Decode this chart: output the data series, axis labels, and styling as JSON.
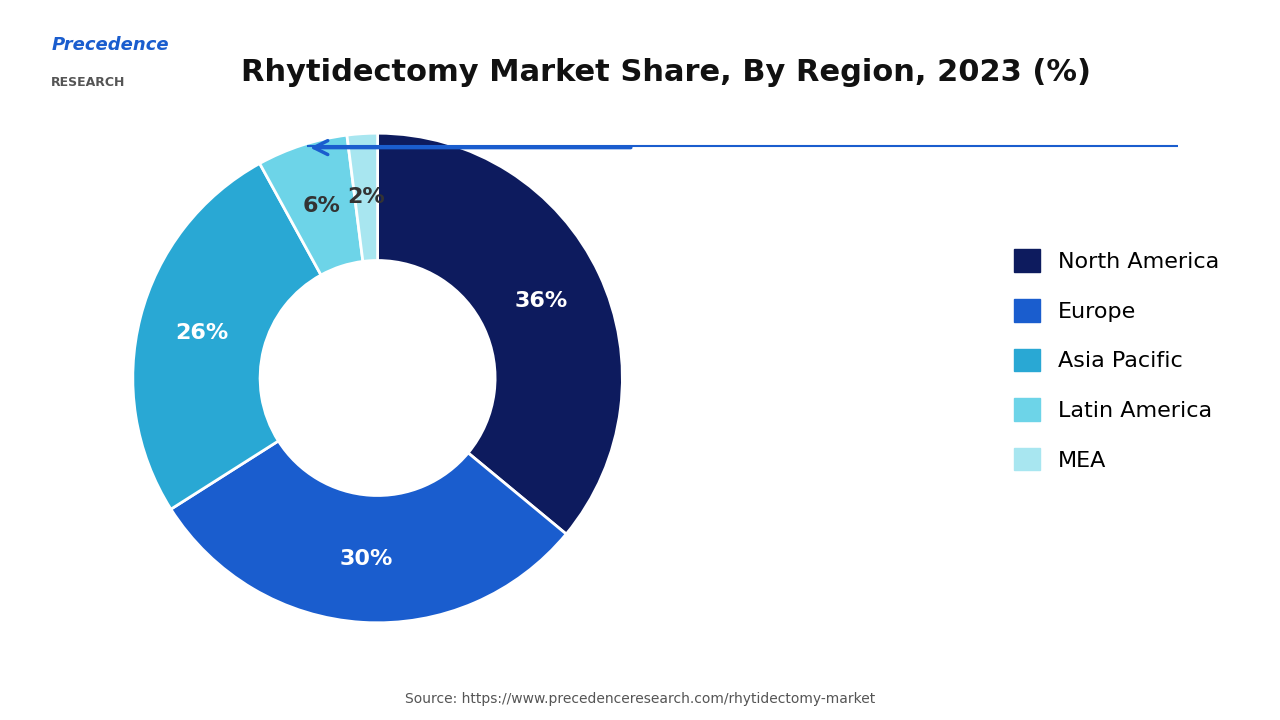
{
  "title": "Rhytidectomy Market Share, By Region, 2023 (%)",
  "categories": [
    "North America",
    "Europe",
    "Asia Pacific",
    "Latin America",
    "MEA"
  ],
  "values": [
    36,
    30,
    26,
    6,
    2
  ],
  "colors": [
    "#0d1b5e",
    "#1a5dce",
    "#29a8d4",
    "#6dd4e8",
    "#a8e6f0"
  ],
  "labels": [
    "36%",
    "30%",
    "26%",
    "6%",
    "2%"
  ],
  "source": "Source: https://www.precedenceresearch.com/rhytidectomy-market",
  "background_color": "#ffffff",
  "title_fontsize": 22,
  "label_fontsize": 16,
  "legend_fontsize": 16
}
